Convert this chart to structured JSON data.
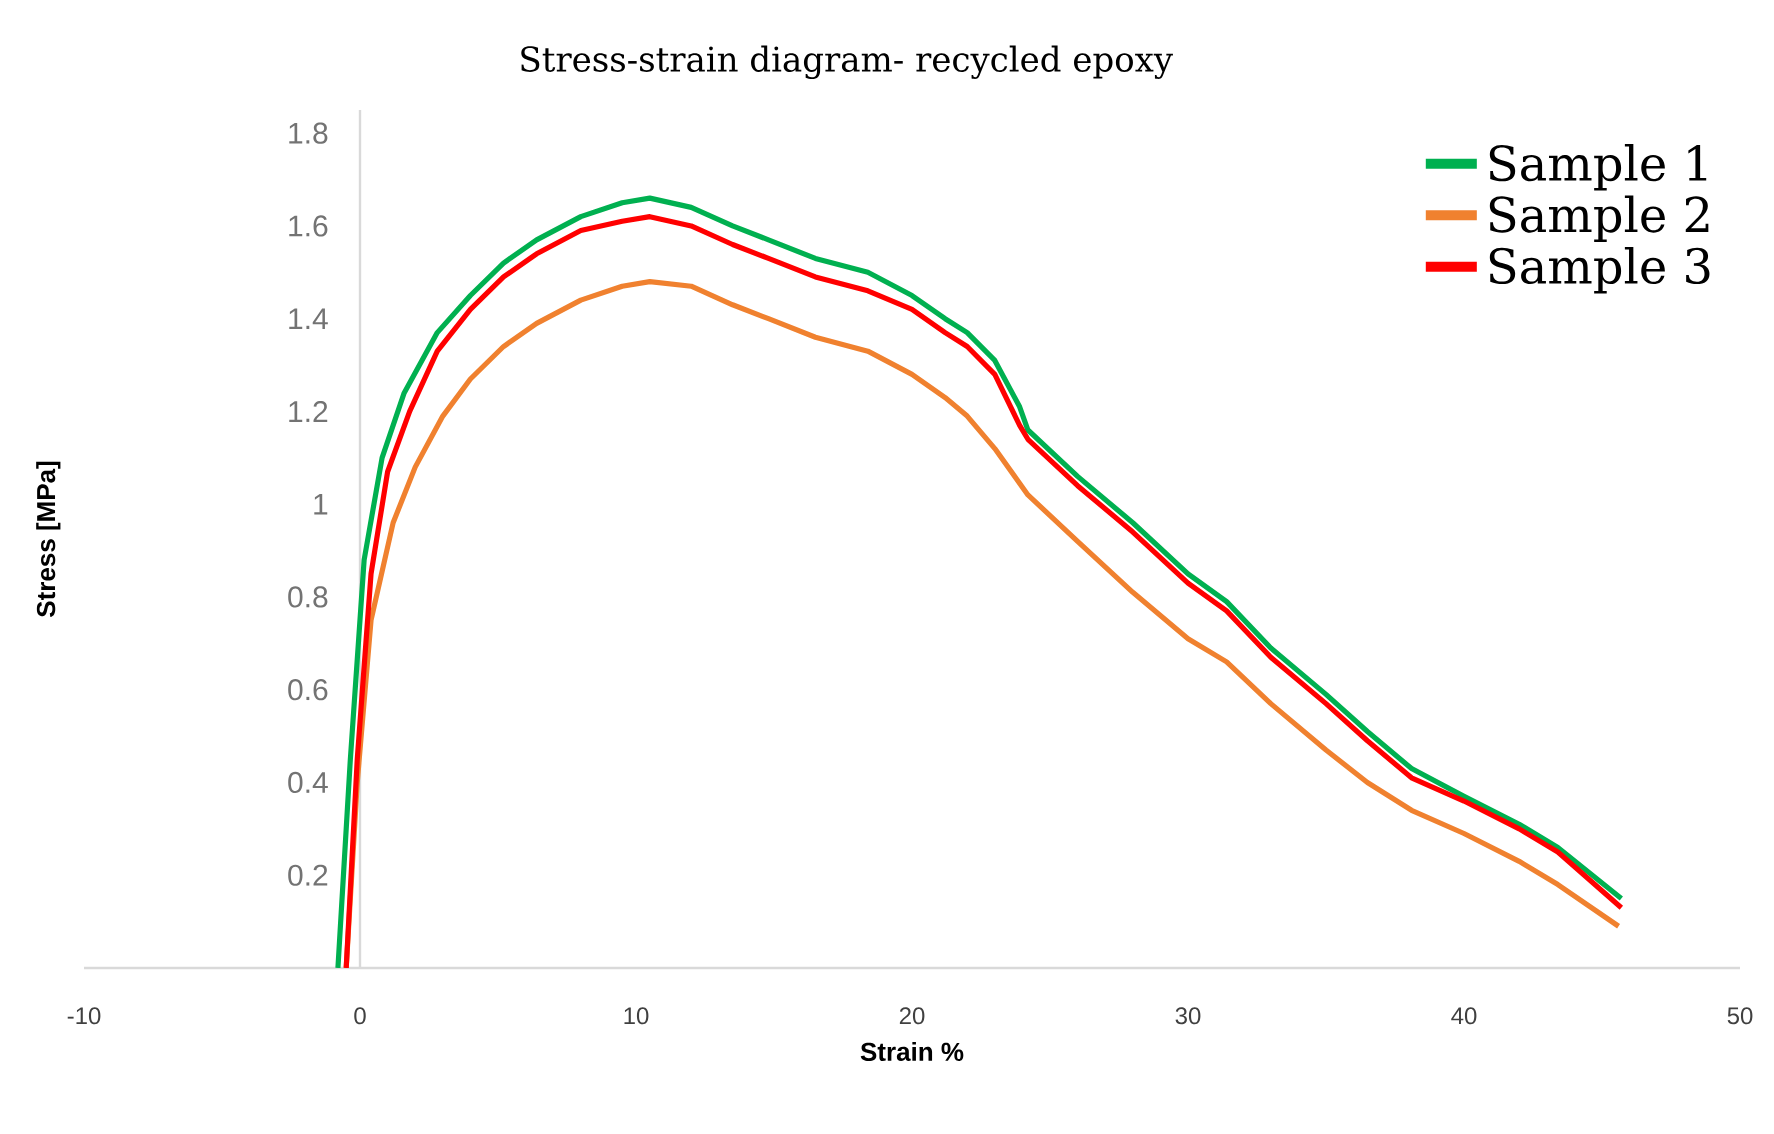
{
  "chart_data": {
    "type": "line",
    "title": "Stress-strain diagram- recycled epoxy",
    "xlabel": "Strain %",
    "ylabel": "Stress [MPa]",
    "xlim": [
      -10,
      50
    ],
    "xticks": [
      -10,
      0,
      10,
      20,
      30,
      40,
      50
    ],
    "ylim": [
      0,
      1.85
    ],
    "yticks": [
      0.2,
      0.4,
      0.6,
      0.8,
      1,
      1.2,
      1.4,
      1.6,
      1.8
    ],
    "legend": "top right",
    "grid": false,
    "marker": "none",
    "line_style": "solid",
    "series": [
      {
        "name": "Sample 1",
        "color": "#00b050",
        "x": [
          -0.8,
          -0.35,
          0.15,
          0.8,
          1.6,
          2.8,
          4,
          5.2,
          6.4,
          8,
          9.5,
          10.5,
          12,
          13.5,
          14.8,
          16.5,
          18.4,
          20,
          21.2,
          22,
          23,
          23.9,
          24.2,
          26,
          28,
          30,
          31.4,
          33,
          35,
          36.5,
          38.1,
          40,
          42,
          43.4,
          45.7
        ],
        "values": [
          0,
          0.45,
          0.88,
          1.1,
          1.24,
          1.37,
          1.45,
          1.52,
          1.57,
          1.62,
          1.65,
          1.66,
          1.64,
          1.6,
          1.57,
          1.53,
          1.5,
          1.45,
          1.4,
          1.37,
          1.31,
          1.21,
          1.16,
          1.06,
          0.96,
          0.85,
          0.79,
          0.69,
          0.59,
          0.51,
          0.43,
          0.37,
          0.31,
          0.26,
          0.15
        ]
      },
      {
        "name": "Sample 2",
        "color": "#f0812f",
        "x": [
          -0.5,
          -0.1,
          0.4,
          1.2,
          2,
          3,
          4,
          5.2,
          6.4,
          8,
          9.5,
          10.5,
          12,
          13.5,
          14.8,
          16.5,
          18.4,
          20,
          21.2,
          22,
          23,
          24.2,
          26,
          28,
          30,
          31.4,
          33,
          35,
          36.5,
          38.1,
          40,
          42,
          43.4,
          45.6
        ],
        "values": [
          0,
          0.4,
          0.75,
          0.96,
          1.08,
          1.19,
          1.27,
          1.34,
          1.39,
          1.44,
          1.47,
          1.48,
          1.47,
          1.43,
          1.4,
          1.36,
          1.33,
          1.28,
          1.23,
          1.19,
          1.12,
          1.02,
          0.92,
          0.81,
          0.71,
          0.66,
          0.57,
          0.47,
          0.4,
          0.34,
          0.29,
          0.23,
          0.18,
          0.09
        ]
      },
      {
        "name": "Sample 3",
        "color": "#ff0000",
        "x": [
          -0.5,
          -0.1,
          0.4,
          1,
          1.8,
          2.8,
          4,
          5.2,
          6.4,
          8,
          9.5,
          10.5,
          12,
          13.5,
          14.8,
          16.5,
          18.4,
          20,
          21.2,
          22,
          23,
          23.9,
          24.2,
          26,
          28,
          30,
          31.4,
          33,
          35,
          36.5,
          38.1,
          40,
          42,
          43.4,
          45.7
        ],
        "values": [
          0,
          0.45,
          0.85,
          1.07,
          1.2,
          1.33,
          1.42,
          1.49,
          1.54,
          1.59,
          1.61,
          1.62,
          1.6,
          1.56,
          1.53,
          1.49,
          1.46,
          1.42,
          1.37,
          1.34,
          1.28,
          1.17,
          1.14,
          1.04,
          0.94,
          0.83,
          0.77,
          0.67,
          0.57,
          0.49,
          0.41,
          0.36,
          0.3,
          0.25,
          0.13
        ]
      }
    ]
  }
}
